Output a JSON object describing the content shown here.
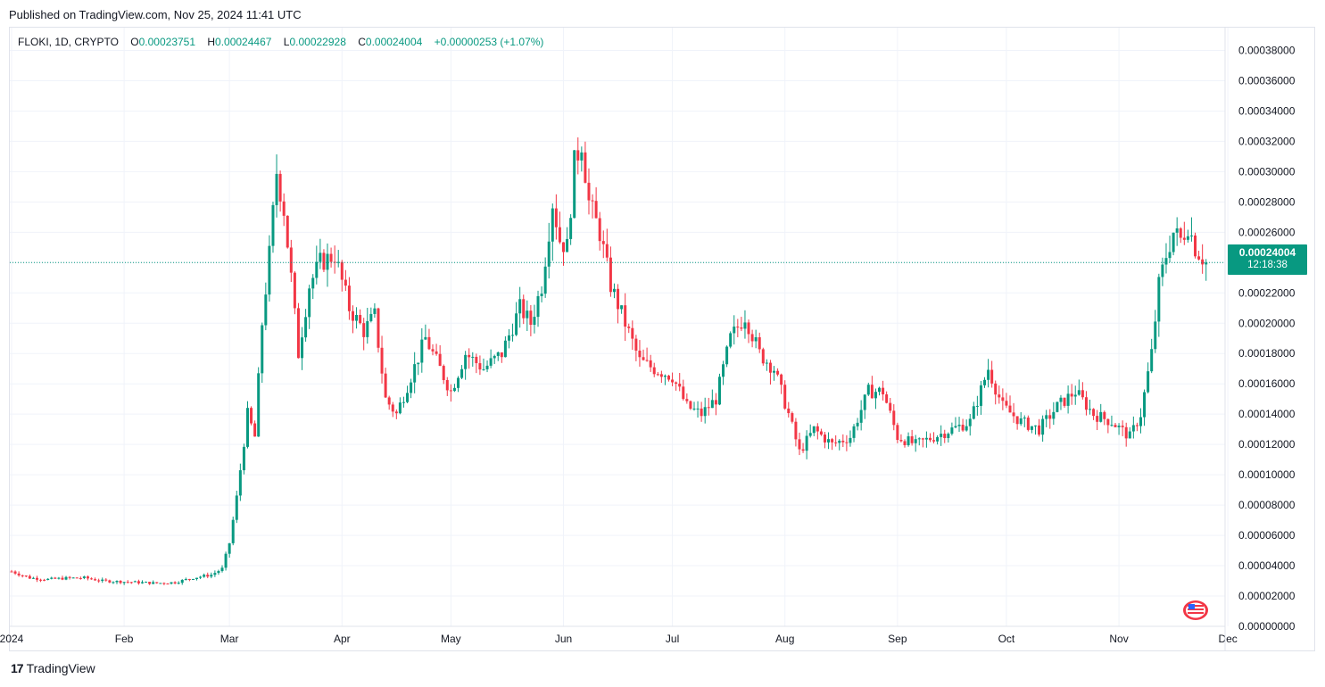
{
  "header": {
    "published": "Published on TradingView.com, Nov 25, 2024 11:41 UTC"
  },
  "legend": {
    "symbol": "FLOKI, 1D, CRYPTO",
    "open_label": "O",
    "open": "0.00023751",
    "high_label": "H",
    "high": "0.00024467",
    "low_label": "L",
    "low": "0.00022928",
    "close_label": "C",
    "close": "0.00024004",
    "change": "+0.00000253 (+1.07%)"
  },
  "price_tag": {
    "price": "0.00024004",
    "countdown": "12:18:38"
  },
  "footer": {
    "brand": "TradingView"
  },
  "icons": {
    "logo": "tradingview-logo-icon",
    "flag": "us-flag-icon"
  },
  "colors": {
    "up": "#089981",
    "down": "#f23645",
    "grid": "#f0f3fa",
    "text": "#131722"
  },
  "chart_data": {
    "type": "candlestick",
    "symbol": "FLOKI",
    "interval": "1D",
    "x_tick_labels": [
      "2024",
      "Feb",
      "Mar",
      "Apr",
      "May",
      "Jun",
      "Jul",
      "Aug",
      "Sep",
      "Oct",
      "Nov",
      "Dec"
    ],
    "y_tick_labels": [
      "0.00000000",
      "0.00002000",
      "0.00004000",
      "0.00006000",
      "0.00008000",
      "0.00010000",
      "0.00012000",
      "0.00014000",
      "0.00016000",
      "0.00018000",
      "0.00020000",
      "0.00022000",
      "0.00024000",
      "0.00026000",
      "0.00028000",
      "0.00030000",
      "0.00032000",
      "0.00034000",
      "0.00036000",
      "0.00038000"
    ],
    "ylim": [
      0,
      0.000385
    ],
    "last_price": 0.00024004,
    "price_line": "dotted",
    "grid": true,
    "x_start": "2024-01-01",
    "series": [
      {
        "date": "2024-01-01",
        "close": 3.62e-05
      },
      {
        "date": "2024-01-06",
        "close": 3.2e-05
      },
      {
        "date": "2024-01-11",
        "close": 3.1e-05
      },
      {
        "date": "2024-01-16",
        "close": 3.18e-05
      },
      {
        "date": "2024-01-21",
        "close": 3.2e-05
      },
      {
        "date": "2024-01-26",
        "close": 3e-05
      },
      {
        "date": "2024-01-31",
        "close": 2.95e-05
      },
      {
        "date": "2024-02-05",
        "close": 2.9e-05
      },
      {
        "date": "2024-02-10",
        "close": 2.85e-05
      },
      {
        "date": "2024-02-15",
        "close": 2.9e-05
      },
      {
        "date": "2024-02-20",
        "close": 3.2e-05
      },
      {
        "date": "2024-02-25",
        "close": 3.4e-05
      },
      {
        "date": "2024-02-28",
        "close": 3.8e-05
      },
      {
        "date": "2024-03-01",
        "close": 5.5e-05
      },
      {
        "date": "2024-03-03",
        "close": 8.5e-05
      },
      {
        "date": "2024-03-06",
        "close": 0.00014
      },
      {
        "date": "2024-03-08",
        "close": 0.000125
      },
      {
        "date": "2024-03-10",
        "close": 0.0002
      },
      {
        "date": "2024-03-12",
        "close": 0.000245
      },
      {
        "date": "2024-03-14",
        "close": 0.0003
      },
      {
        "date": "2024-03-16",
        "close": 0.000275
      },
      {
        "date": "2024-03-18",
        "close": 0.00023
      },
      {
        "date": "2024-03-20",
        "close": 0.00018
      },
      {
        "date": "2024-03-23",
        "close": 0.000225
      },
      {
        "date": "2024-03-26",
        "close": 0.00024
      },
      {
        "date": "2024-03-30",
        "close": 0.000245
      },
      {
        "date": "2024-04-03",
        "close": 0.00021
      },
      {
        "date": "2024-04-07",
        "close": 0.000195
      },
      {
        "date": "2024-04-10",
        "close": 0.000205
      },
      {
        "date": "2024-04-13",
        "close": 0.00015
      },
      {
        "date": "2024-04-16",
        "close": 0.00014
      },
      {
        "date": "2024-04-20",
        "close": 0.000165
      },
      {
        "date": "2024-04-24",
        "close": 0.00019
      },
      {
        "date": "2024-04-28",
        "close": 0.00017
      },
      {
        "date": "2024-05-01",
        "close": 0.000155
      },
      {
        "date": "2024-05-05",
        "close": 0.00018
      },
      {
        "date": "2024-05-10",
        "close": 0.00017
      },
      {
        "date": "2024-05-15",
        "close": 0.00018
      },
      {
        "date": "2024-05-20",
        "close": 0.00021
      },
      {
        "date": "2024-05-23",
        "close": 0.0002
      },
      {
        "date": "2024-05-26",
        "close": 0.000225
      },
      {
        "date": "2024-05-29",
        "close": 0.00028
      },
      {
        "date": "2024-05-31",
        "close": 0.000255
      },
      {
        "date": "2024-06-02",
        "close": 0.00025
      },
      {
        "date": "2024-06-04",
        "close": 0.000305
      },
      {
        "date": "2024-06-06",
        "close": 0.00032
      },
      {
        "date": "2024-06-08",
        "close": 0.00028
      },
      {
        "date": "2024-06-11",
        "close": 0.00026
      },
      {
        "date": "2024-06-14",
        "close": 0.000225
      },
      {
        "date": "2024-06-18",
        "close": 0.0002
      },
      {
        "date": "2024-06-22",
        "close": 0.000175
      },
      {
        "date": "2024-06-26",
        "close": 0.00017
      },
      {
        "date": "2024-07-01",
        "close": 0.000165
      },
      {
        "date": "2024-07-05",
        "close": 0.000145
      },
      {
        "date": "2024-07-09",
        "close": 0.00014
      },
      {
        "date": "2024-07-13",
        "close": 0.00015
      },
      {
        "date": "2024-07-17",
        "close": 0.00019
      },
      {
        "date": "2024-07-21",
        "close": 0.000205
      },
      {
        "date": "2024-07-25",
        "close": 0.00018
      },
      {
        "date": "2024-07-29",
        "close": 0.00017
      },
      {
        "date": "2024-08-02",
        "close": 0.00014
      },
      {
        "date": "2024-08-05",
        "close": 0.000115
      },
      {
        "date": "2024-08-09",
        "close": 0.00013
      },
      {
        "date": "2024-08-14",
        "close": 0.00012
      },
      {
        "date": "2024-08-19",
        "close": 0.000125
      },
      {
        "date": "2024-08-24",
        "close": 0.000155
      },
      {
        "date": "2024-08-28",
        "close": 0.000155
      },
      {
        "date": "2024-09-01",
        "close": 0.000125
      },
      {
        "date": "2024-09-06",
        "close": 0.00012
      },
      {
        "date": "2024-09-11",
        "close": 0.000125
      },
      {
        "date": "2024-09-16",
        "close": 0.00013
      },
      {
        "date": "2024-09-21",
        "close": 0.000135
      },
      {
        "date": "2024-09-26",
        "close": 0.00017
      },
      {
        "date": "2024-09-30",
        "close": 0.000145
      },
      {
        "date": "2024-10-05",
        "close": 0.000135
      },
      {
        "date": "2024-10-10",
        "close": 0.00013
      },
      {
        "date": "2024-10-15",
        "close": 0.000145
      },
      {
        "date": "2024-10-20",
        "close": 0.000155
      },
      {
        "date": "2024-10-25",
        "close": 0.00014
      },
      {
        "date": "2024-10-30",
        "close": 0.000135
      },
      {
        "date": "2024-11-04",
        "close": 0.000125
      },
      {
        "date": "2024-11-07",
        "close": 0.00014
      },
      {
        "date": "2024-11-10",
        "close": 0.00018
      },
      {
        "date": "2024-11-12",
        "close": 0.000225
      },
      {
        "date": "2024-11-14",
        "close": 0.000245
      },
      {
        "date": "2024-11-16",
        "close": 0.00026
      },
      {
        "date": "2024-11-18",
        "close": 0.000255
      },
      {
        "date": "2024-11-20",
        "close": 0.000265
      },
      {
        "date": "2024-11-22",
        "close": 0.00025
      },
      {
        "date": "2024-11-25",
        "close": 0.00024004
      }
    ]
  }
}
